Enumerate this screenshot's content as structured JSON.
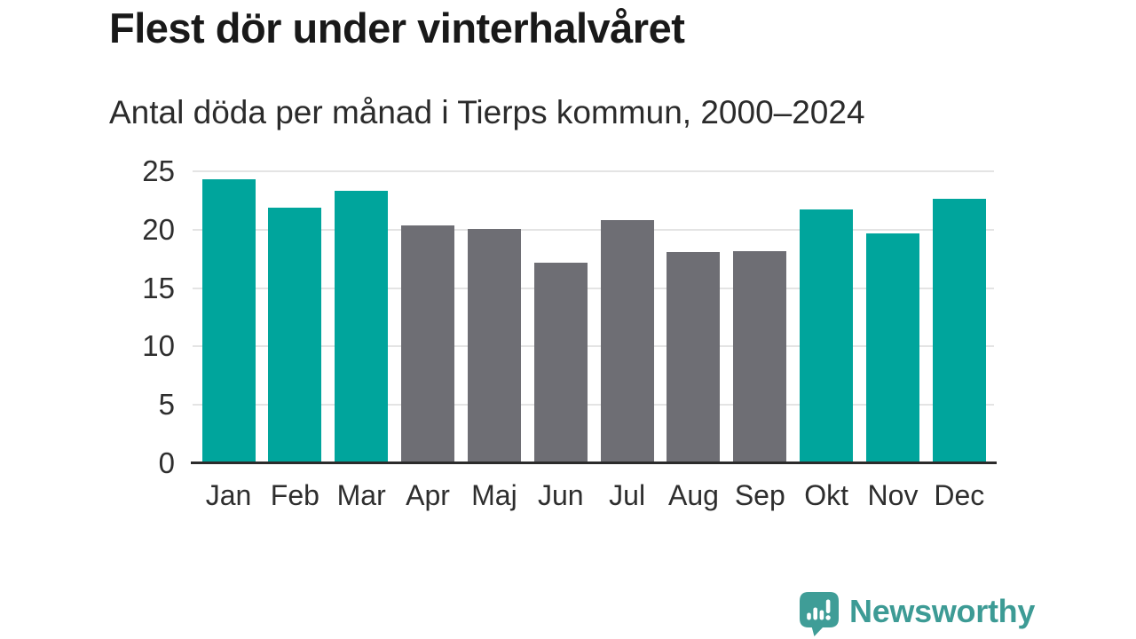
{
  "header": {
    "title": "Flest dör under vinterhalvåret",
    "subtitle": "Antal döda per månad i Tierps kommun, 2000–2024"
  },
  "chart_data": {
    "type": "bar",
    "title": "Flest dör under vinterhalvåret",
    "subtitle": "Antal döda per månad i Tierps kommun, 2000–2024",
    "categories": [
      "Jan",
      "Feb",
      "Mar",
      "Apr",
      "Maj",
      "Jun",
      "Jul",
      "Aug",
      "Sep",
      "Okt",
      "Nov",
      "Dec"
    ],
    "values": [
      24.2,
      21.7,
      23.2,
      20.2,
      19.9,
      17.0,
      20.7,
      17.9,
      18.0,
      21.6,
      19.5,
      22.5
    ],
    "bar_color_groups": [
      "winter",
      "winter",
      "winter",
      "summer",
      "summer",
      "summer",
      "summer",
      "summer",
      "summer",
      "winter",
      "winter",
      "winter"
    ],
    "colors": {
      "winter": "#00a59c",
      "summer": "#6e6e74"
    },
    "xlabel": "",
    "ylabel": "",
    "yticks": [
      0,
      5,
      10,
      15,
      20,
      25
    ],
    "ylim": [
      0,
      25
    ],
    "grid": true,
    "legend": "none",
    "gridline_color": "#e4e4e4",
    "axis_line_color": "#2b2b2b"
  },
  "footer": {
    "brand": "Newsworthy",
    "brand_color": "#3d9b95",
    "logo_icon_color": "#3f9d97"
  }
}
